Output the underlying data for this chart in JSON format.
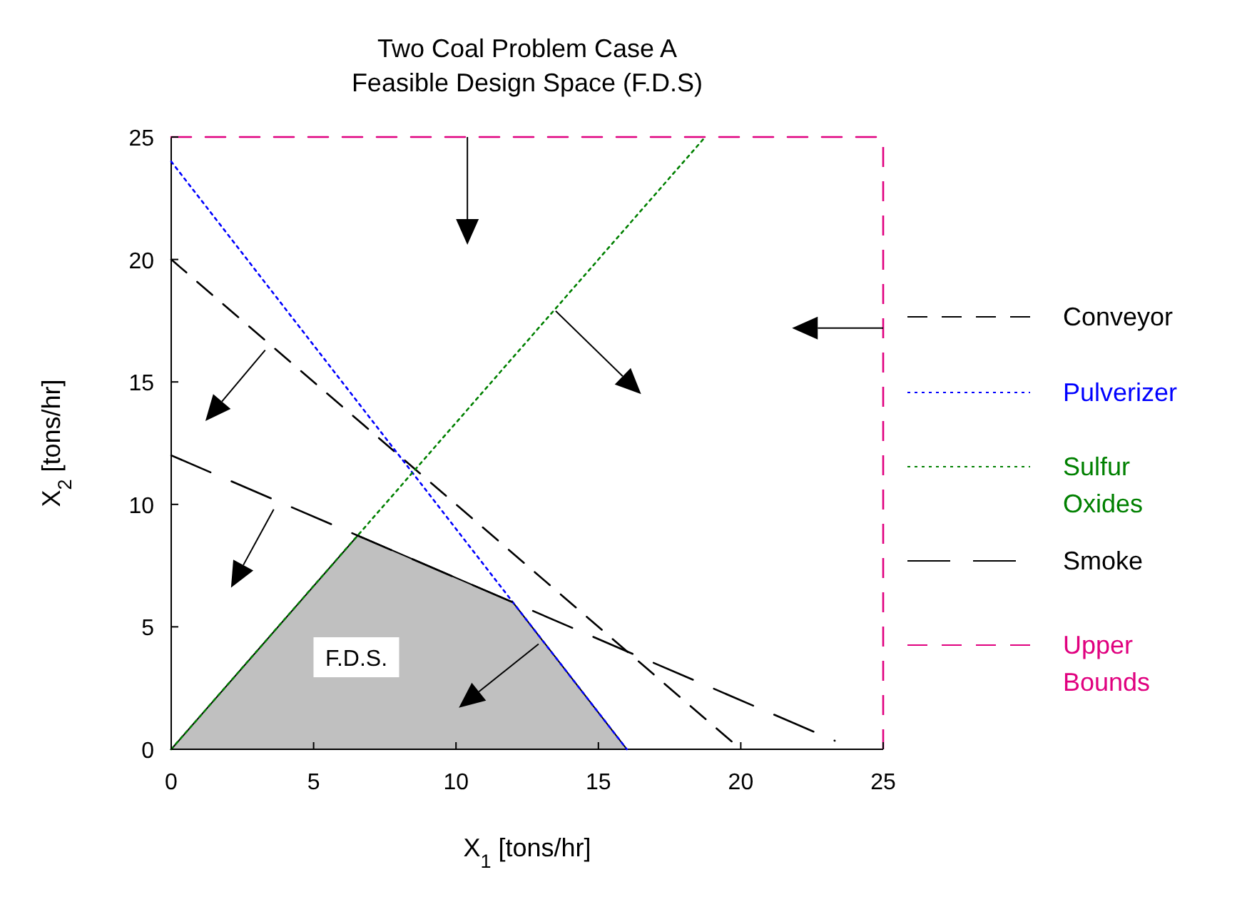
{
  "chart_data": {
    "type": "line",
    "title": "Two Coal Problem Case A",
    "subtitle": "Feasible Design Space (F.D.S)",
    "xlabel": "X$_{1}$ [tons/hr]",
    "ylabel": "X$_{2}$ [tons/hr]",
    "xlim": [
      0,
      25
    ],
    "ylim": [
      0,
      25
    ],
    "xticks": [
      0,
      5,
      10,
      15,
      20,
      25
    ],
    "yticks": [
      0,
      5,
      10,
      15,
      20,
      25
    ],
    "legend": "right",
    "series": [
      {
        "type": "area",
        "color": "#c0c0c0",
        "x": [
          0,
          6.55,
          12,
          16
        ],
        "values": [
          0,
          8.73,
          6,
          0
        ]
      },
      {
        "name": "Conveyor",
        "color": "#000000",
        "line_style": "dashed",
        "x": [
          0,
          20
        ],
        "values": [
          20,
          0
        ]
      },
      {
        "name": "Pulverizer",
        "color": "#0000ff",
        "line_style": "dotted",
        "x": [
          0,
          16
        ],
        "values": [
          24,
          0
        ]
      },
      {
        "name": "Sulfur Oxides",
        "color": "#008000",
        "line_style": "dotted",
        "x": [
          0,
          18.75
        ],
        "values": [
          0,
          25
        ]
      },
      {
        "name": "Smoke",
        "color": "#000000",
        "line_style": "dashed",
        "x": [
          0,
          23.3
        ],
        "values": [
          12,
          0.35
        ]
      },
      {
        "name": "Upper Bounds",
        "color": "#e0007f",
        "line_style": "dashed",
        "x": [
          0,
          25
        ],
        "values": [
          25,
          25
        ]
      }
    ],
    "ref_lines": [
      {
        "axis": "x",
        "value": 25,
        "color": "#e0007f",
        "line_style": "dashed"
      }
    ],
    "annotations": [
      "F.D.S."
    ]
  }
}
